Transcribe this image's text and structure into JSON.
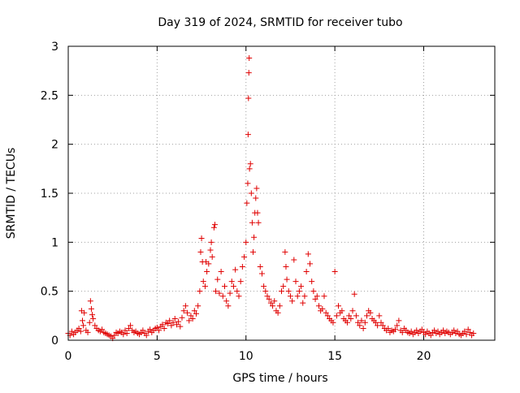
{
  "chart_data": {
    "type": "scatter",
    "title": "Day 319 of 2024, SRMTID for receiver tubo",
    "xlabel": "GPS time / hours",
    "ylabel": "SRMTID / TECUs",
    "xlim": [
      0,
      24
    ],
    "ylim": [
      0,
      3
    ],
    "x_ticks": [
      0,
      5,
      10,
      15,
      20
    ],
    "x_tick_labels": [
      "0",
      "5",
      "10",
      "15",
      "20"
    ],
    "y_ticks": [
      0,
      0.5,
      1,
      1.5,
      2,
      2.5,
      3
    ],
    "y_tick_labels": [
      "0",
      "0.5",
      "1",
      "1.5",
      "2",
      "2.5",
      "3"
    ],
    "grid": true,
    "marker": "+",
    "series": [
      {
        "name": "SRMTID",
        "color": "#e00000",
        "points": [
          [
            0.0,
            0.07
          ],
          [
            0.1,
            0.05
          ],
          [
            0.2,
            0.09
          ],
          [
            0.3,
            0.06
          ],
          [
            0.4,
            0.08
          ],
          [
            0.5,
            0.1
          ],
          [
            0.6,
            0.12
          ],
          [
            0.7,
            0.09
          ],
          [
            0.75,
            0.3
          ],
          [
            0.8,
            0.2
          ],
          [
            0.85,
            0.15
          ],
          [
            0.9,
            0.28
          ],
          [
            1.0,
            0.1
          ],
          [
            1.1,
            0.08
          ],
          [
            1.2,
            0.18
          ],
          [
            1.25,
            0.4
          ],
          [
            1.3,
            0.32
          ],
          [
            1.35,
            0.26
          ],
          [
            1.4,
            0.22
          ],
          [
            1.5,
            0.15
          ],
          [
            1.6,
            0.12
          ],
          [
            1.7,
            0.1
          ],
          [
            1.8,
            0.09
          ],
          [
            1.9,
            0.11
          ],
          [
            2.0,
            0.08
          ],
          [
            2.1,
            0.07
          ],
          [
            2.2,
            0.06
          ],
          [
            2.3,
            0.05
          ],
          [
            2.4,
            0.04
          ],
          [
            2.5,
            0.02
          ],
          [
            2.6,
            0.05
          ],
          [
            2.7,
            0.08
          ],
          [
            2.8,
            0.07
          ],
          [
            2.9,
            0.09
          ],
          [
            3.0,
            0.08
          ],
          [
            3.1,
            0.06
          ],
          [
            3.2,
            0.1
          ],
          [
            3.3,
            0.07
          ],
          [
            3.4,
            0.12
          ],
          [
            3.5,
            0.15
          ],
          [
            3.6,
            0.1
          ],
          [
            3.7,
            0.08
          ],
          [
            3.8,
            0.09
          ],
          [
            3.9,
            0.07
          ],
          [
            4.0,
            0.06
          ],
          [
            4.1,
            0.08
          ],
          [
            4.2,
            0.1
          ],
          [
            4.3,
            0.07
          ],
          [
            4.4,
            0.05
          ],
          [
            4.5,
            0.09
          ],
          [
            4.6,
            0.11
          ],
          [
            4.7,
            0.08
          ],
          [
            4.8,
            0.1
          ],
          [
            4.9,
            0.12
          ],
          [
            5.0,
            0.13
          ],
          [
            5.1,
            0.1
          ],
          [
            5.2,
            0.14
          ],
          [
            5.3,
            0.16
          ],
          [
            5.4,
            0.12
          ],
          [
            5.5,
            0.18
          ],
          [
            5.6,
            0.17
          ],
          [
            5.7,
            0.2
          ],
          [
            5.8,
            0.15
          ],
          [
            5.9,
            0.18
          ],
          [
            6.0,
            0.22
          ],
          [
            6.1,
            0.16
          ],
          [
            6.2,
            0.19
          ],
          [
            6.3,
            0.14
          ],
          [
            6.4,
            0.23
          ],
          [
            6.5,
            0.3
          ],
          [
            6.6,
            0.35
          ],
          [
            6.7,
            0.28
          ],
          [
            6.8,
            0.2
          ],
          [
            6.9,
            0.25
          ],
          [
            7.0,
            0.22
          ],
          [
            7.1,
            0.3
          ],
          [
            7.2,
            0.27
          ],
          [
            7.3,
            0.35
          ],
          [
            7.4,
            0.5
          ],
          [
            7.45,
            0.9
          ],
          [
            7.5,
            1.04
          ],
          [
            7.55,
            0.8
          ],
          [
            7.6,
            0.6
          ],
          [
            7.7,
            0.55
          ],
          [
            7.75,
            0.8
          ],
          [
            7.8,
            0.7
          ],
          [
            7.9,
            0.78
          ],
          [
            8.0,
            0.92
          ],
          [
            8.05,
            1.0
          ],
          [
            8.1,
            0.85
          ],
          [
            8.2,
            1.15
          ],
          [
            8.25,
            1.18
          ],
          [
            8.3,
            0.5
          ],
          [
            8.4,
            0.62
          ],
          [
            8.5,
            0.48
          ],
          [
            8.6,
            0.7
          ],
          [
            8.7,
            0.45
          ],
          [
            8.8,
            0.55
          ],
          [
            8.9,
            0.4
          ],
          [
            9.0,
            0.35
          ],
          [
            9.1,
            0.48
          ],
          [
            9.2,
            0.6
          ],
          [
            9.3,
            0.55
          ],
          [
            9.4,
            0.72
          ],
          [
            9.5,
            0.5
          ],
          [
            9.6,
            0.45
          ],
          [
            9.7,
            0.6
          ],
          [
            9.8,
            0.75
          ],
          [
            9.9,
            0.85
          ],
          [
            10.0,
            1.0
          ],
          [
            10.05,
            1.4
          ],
          [
            10.1,
            1.6
          ],
          [
            10.12,
            2.1
          ],
          [
            10.14,
            2.47
          ],
          [
            10.16,
            2.73
          ],
          [
            10.18,
            2.88
          ],
          [
            10.2,
            1.75
          ],
          [
            10.25,
            1.8
          ],
          [
            10.3,
            1.5
          ],
          [
            10.35,
            1.2
          ],
          [
            10.4,
            0.9
          ],
          [
            10.45,
            1.05
          ],
          [
            10.5,
            1.3
          ],
          [
            10.55,
            1.45
          ],
          [
            10.6,
            1.55
          ],
          [
            10.65,
            1.3
          ],
          [
            10.7,
            1.2
          ],
          [
            10.8,
            0.75
          ],
          [
            10.9,
            0.68
          ],
          [
            11.0,
            0.55
          ],
          [
            11.1,
            0.5
          ],
          [
            11.2,
            0.45
          ],
          [
            11.3,
            0.42
          ],
          [
            11.4,
            0.38
          ],
          [
            11.5,
            0.35
          ],
          [
            11.6,
            0.4
          ],
          [
            11.7,
            0.3
          ],
          [
            11.8,
            0.28
          ],
          [
            11.9,
            0.35
          ],
          [
            12.0,
            0.5
          ],
          [
            12.1,
            0.55
          ],
          [
            12.2,
            0.9
          ],
          [
            12.25,
            0.75
          ],
          [
            12.3,
            0.62
          ],
          [
            12.4,
            0.5
          ],
          [
            12.5,
            0.45
          ],
          [
            12.6,
            0.4
          ],
          [
            12.7,
            0.82
          ],
          [
            12.8,
            0.6
          ],
          [
            12.9,
            0.45
          ],
          [
            13.0,
            0.5
          ],
          [
            13.1,
            0.55
          ],
          [
            13.2,
            0.38
          ],
          [
            13.3,
            0.45
          ],
          [
            13.4,
            0.7
          ],
          [
            13.5,
            0.88
          ],
          [
            13.6,
            0.78
          ],
          [
            13.7,
            0.6
          ],
          [
            13.8,
            0.5
          ],
          [
            13.9,
            0.42
          ],
          [
            14.0,
            0.45
          ],
          [
            14.1,
            0.35
          ],
          [
            14.2,
            0.3
          ],
          [
            14.3,
            0.32
          ],
          [
            14.4,
            0.45
          ],
          [
            14.5,
            0.28
          ],
          [
            14.6,
            0.25
          ],
          [
            14.7,
            0.22
          ],
          [
            14.8,
            0.2
          ],
          [
            14.9,
            0.18
          ],
          [
            15.0,
            0.7
          ],
          [
            15.1,
            0.25
          ],
          [
            15.2,
            0.35
          ],
          [
            15.3,
            0.28
          ],
          [
            15.4,
            0.3
          ],
          [
            15.5,
            0.22
          ],
          [
            15.6,
            0.2
          ],
          [
            15.7,
            0.18
          ],
          [
            15.8,
            0.25
          ],
          [
            15.9,
            0.22
          ],
          [
            16.0,
            0.3
          ],
          [
            16.1,
            0.47
          ],
          [
            16.2,
            0.25
          ],
          [
            16.3,
            0.18
          ],
          [
            16.4,
            0.15
          ],
          [
            16.5,
            0.2
          ],
          [
            16.6,
            0.12
          ],
          [
            16.7,
            0.18
          ],
          [
            16.8,
            0.25
          ],
          [
            16.9,
            0.3
          ],
          [
            17.0,
            0.28
          ],
          [
            17.1,
            0.22
          ],
          [
            17.2,
            0.2
          ],
          [
            17.3,
            0.18
          ],
          [
            17.4,
            0.15
          ],
          [
            17.5,
            0.25
          ],
          [
            17.6,
            0.18
          ],
          [
            17.7,
            0.15
          ],
          [
            17.8,
            0.12
          ],
          [
            17.9,
            0.1
          ],
          [
            18.0,
            0.12
          ],
          [
            18.1,
            0.08
          ],
          [
            18.2,
            0.1
          ],
          [
            18.3,
            0.09
          ],
          [
            18.4,
            0.11
          ],
          [
            18.5,
            0.15
          ],
          [
            18.6,
            0.2
          ],
          [
            18.7,
            0.1
          ],
          [
            18.8,
            0.08
          ],
          [
            18.9,
            0.12
          ],
          [
            19.0,
            0.1
          ],
          [
            19.1,
            0.08
          ],
          [
            19.2,
            0.07
          ],
          [
            19.3,
            0.09
          ],
          [
            19.4,
            0.06
          ],
          [
            19.5,
            0.08
          ],
          [
            19.6,
            0.1
          ],
          [
            19.7,
            0.07
          ],
          [
            19.8,
            0.09
          ],
          [
            19.9,
            0.11
          ],
          [
            20.0,
            0.08
          ],
          [
            20.1,
            0.06
          ],
          [
            20.2,
            0.09
          ],
          [
            20.3,
            0.07
          ],
          [
            20.4,
            0.05
          ],
          [
            20.5,
            0.08
          ],
          [
            20.6,
            0.1
          ],
          [
            20.7,
            0.07
          ],
          [
            20.8,
            0.09
          ],
          [
            20.9,
            0.06
          ],
          [
            21.0,
            0.08
          ],
          [
            21.1,
            0.1
          ],
          [
            21.2,
            0.07
          ],
          [
            21.3,
            0.09
          ],
          [
            21.4,
            0.08
          ],
          [
            21.5,
            0.06
          ],
          [
            21.6,
            0.08
          ],
          [
            21.7,
            0.1
          ],
          [
            21.8,
            0.07
          ],
          [
            21.9,
            0.09
          ],
          [
            22.0,
            0.06
          ],
          [
            22.1,
            0.05
          ],
          [
            22.2,
            0.07
          ],
          [
            22.3,
            0.09
          ],
          [
            22.4,
            0.06
          ],
          [
            22.5,
            0.11
          ],
          [
            22.6,
            0.08
          ],
          [
            22.7,
            0.05
          ],
          [
            22.8,
            0.07
          ]
        ]
      }
    ]
  },
  "colors": {
    "background": "#ffffff",
    "axis": "#000000",
    "grid": "#a0a0a0",
    "marker": "#e00000"
  }
}
